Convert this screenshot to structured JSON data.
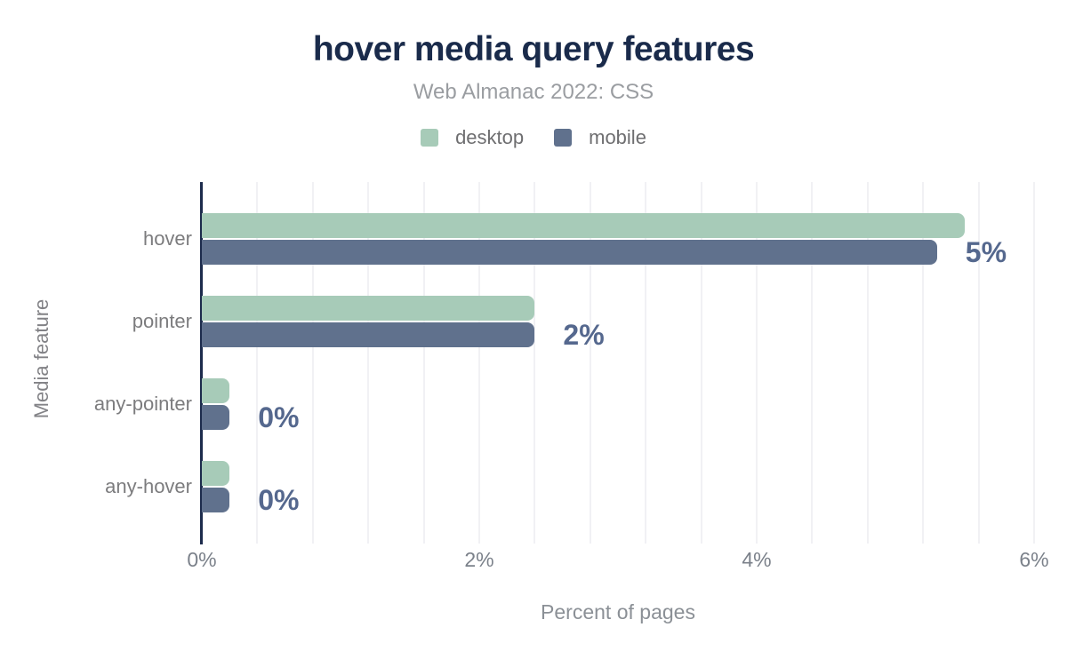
{
  "header": {
    "title": "hover media query features",
    "subtitle": "Web Almanac 2022: CSS"
  },
  "legend": [
    {
      "label": "desktop",
      "color": "#a7cbb8"
    },
    {
      "label": "mobile",
      "color": "#60718d"
    }
  ],
  "chart_data": {
    "type": "bar",
    "orientation": "horizontal",
    "title": "hover media query features",
    "subtitle": "Web Almanac 2022: CSS",
    "categories": [
      "hover",
      "pointer",
      "any-pointer",
      "any-hover"
    ],
    "series": [
      {
        "name": "desktop",
        "color": "#a7cbb8",
        "values": [
          5.5,
          2.4,
          0.2,
          0.2
        ]
      },
      {
        "name": "mobile",
        "color": "#60718d",
        "values": [
          5.3,
          2.4,
          0.2,
          0.2
        ]
      }
    ],
    "value_labels": [
      "5%",
      "2%",
      "0%",
      "0%"
    ],
    "xlabel": "Percent of pages",
    "ylabel": "Media feature",
    "xlim": [
      0,
      6
    ],
    "xtick_values": [
      0,
      2,
      4,
      6
    ],
    "xtick_labels": [
      "0%",
      "2%",
      "4%",
      "6%"
    ],
    "minor_grid_step": 0.4,
    "grid": true,
    "legend_position": "top"
  },
  "colors": {
    "title": "#1a2b4b",
    "subtitle": "#9a9da1",
    "axis_line": "#1c2b4c",
    "gridline": "#f1f1f4",
    "tick_text": "#7b818a",
    "category_text": "#7c7c7e",
    "value_label": "#55688e",
    "background": "#ffffff"
  }
}
